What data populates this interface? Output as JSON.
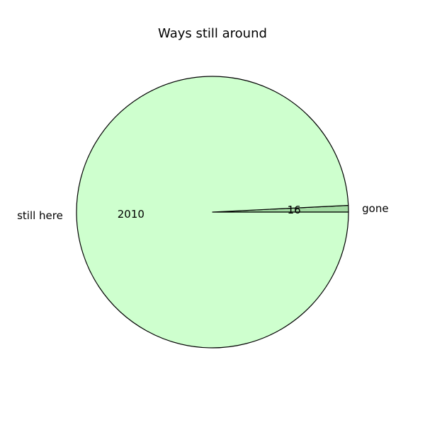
{
  "chart_data": {
    "type": "pie",
    "title": "Ways still around",
    "slices": [
      {
        "label": "still here",
        "value": 2010,
        "color": "#ceffce"
      },
      {
        "label": "gone",
        "value": 16,
        "color": "#a2dba2"
      }
    ],
    "edge_color": "#000000",
    "autopct_labels": true,
    "legend": false
  }
}
